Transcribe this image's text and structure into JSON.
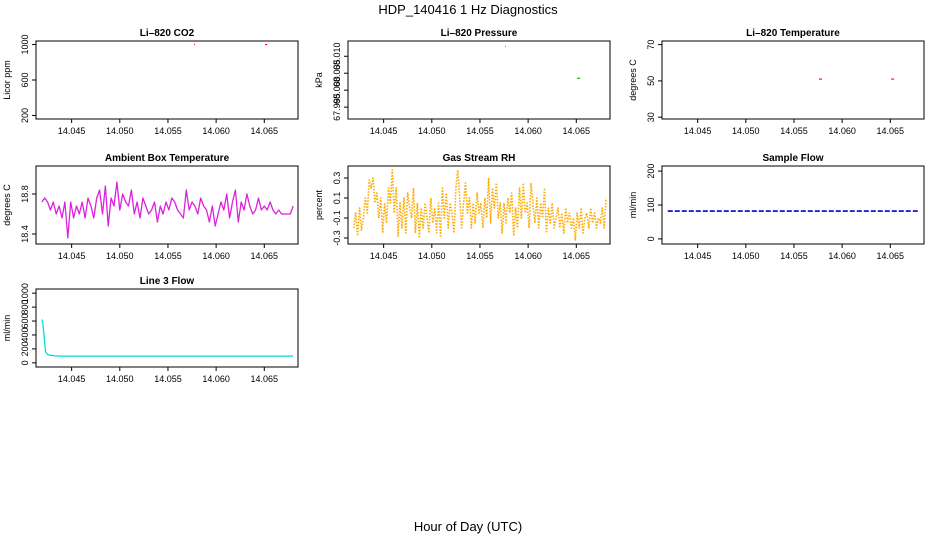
{
  "figure": {
    "title": "HDP_140416  1 Hz Diagnostics",
    "xlabel": "Hour of Day (UTC)"
  },
  "chart_data": [
    {
      "id": "co2",
      "type": "line",
      "title": "Li–820 CO2",
      "ylabel": "Licor ppm",
      "xlim": [
        14.0413,
        14.0685
      ],
      "ylim": [
        160,
        1040
      ],
      "xticks": [
        14.045,
        14.05,
        14.055,
        14.06,
        14.065
      ],
      "xtick_labels": [
        "14.045",
        "14.050",
        "14.055",
        "14.060",
        "14.065"
      ],
      "yticks": [
        200,
        600,
        1000
      ],
      "ytick_labels": [
        "200",
        "600",
        "1000"
      ],
      "series": [
        {
          "name": "co2-a",
          "color": "#ff0000",
          "style": "solid",
          "x": [
            14.0577,
            14.0578
          ],
          "y": [
            1000,
            1000
          ]
        },
        {
          "name": "co2-b",
          "color": "#ff0000",
          "style": "solid",
          "x": [
            14.0651,
            14.0653
          ],
          "y": [
            1000,
            1000
          ]
        }
      ]
    },
    {
      "id": "pressure",
      "type": "line",
      "title": "Li–820 Pressure",
      "ylabel": "kPa",
      "xlim": [
        14.0413,
        14.0685
      ],
      "ylim": [
        67.9915,
        68.0145
      ],
      "xticks": [
        14.045,
        14.05,
        14.055,
        14.06,
        14.065
      ],
      "xtick_labels": [
        "14.045",
        "14.050",
        "14.055",
        "14.060",
        "14.065"
      ],
      "yticks": [
        67.995,
        68.0,
        68.005,
        68.01
      ],
      "ytick_labels": [
        "67.995",
        "68.000",
        "68.005",
        "68.010"
      ],
      "series": [
        {
          "name": "pressure-a",
          "color": "#888888",
          "style": "solid",
          "x": [
            14.0576,
            14.0577
          ],
          "y": [
            68.013,
            68.013
          ]
        },
        {
          "name": "pressure-b",
          "color": "#00cc00",
          "style": "solid",
          "x": [
            14.0651,
            14.0654
          ],
          "y": [
            68.0035,
            68.0035
          ]
        }
      ]
    },
    {
      "id": "licor-temp",
      "type": "line",
      "title": "Li–820 Temperature",
      "ylabel": "degrees C",
      "xlim": [
        14.0413,
        14.0685
      ],
      "ylim": [
        29,
        72
      ],
      "xticks": [
        14.045,
        14.05,
        14.055,
        14.06,
        14.065
      ],
      "xtick_labels": [
        "14.045",
        "14.050",
        "14.055",
        "14.060",
        "14.065"
      ],
      "yticks": [
        30,
        50,
        70
      ],
      "ytick_labels": [
        "30",
        "50",
        "70"
      ],
      "series": [
        {
          "name": "temp-a",
          "color": "#ff00cc",
          "style": "solid",
          "x": [
            14.0576,
            14.0579
          ],
          "y": [
            51,
            51
          ]
        },
        {
          "name": "temp-b",
          "color": "#ff00cc",
          "style": "solid",
          "x": [
            14.0651,
            14.0654
          ],
          "y": [
            51,
            51
          ]
        }
      ]
    },
    {
      "id": "box-temp",
      "type": "line",
      "title": "Ambient Box Temperature",
      "ylabel": "degrees C",
      "xlim": [
        14.0413,
        14.0685
      ],
      "ylim": [
        18.3,
        19.08
      ],
      "xticks": [
        14.045,
        14.05,
        14.055,
        14.06,
        14.065
      ],
      "xtick_labels": [
        "14.045",
        "14.050",
        "14.055",
        "14.060",
        "14.065"
      ],
      "yticks": [
        18.4,
        18.8
      ],
      "ytick_labels": [
        "18.4",
        "18.8"
      ],
      "series": [
        {
          "name": "box-temp",
          "color": "#dd22dd",
          "style": "solid",
          "x": [
            14.0419,
            14.0422,
            14.0425,
            14.0428,
            14.0431,
            14.0434,
            14.0437,
            14.044,
            14.0443,
            14.0446,
            14.0449,
            14.0452,
            14.0455,
            14.0458,
            14.0461,
            14.0464,
            14.0467,
            14.047,
            14.0473,
            14.0476,
            14.0479,
            14.0482,
            14.0485,
            14.0488,
            14.0491,
            14.0494,
            14.0497,
            14.05,
            14.0503,
            14.0506,
            14.0509,
            14.0512,
            14.0515,
            14.0518,
            14.0521,
            14.0524,
            14.0527,
            14.053,
            14.0533,
            14.0536,
            14.0539,
            14.0542,
            14.0545,
            14.0548,
            14.0551,
            14.0554,
            14.0557,
            14.056,
            14.0563,
            14.0566,
            14.0569,
            14.0572,
            14.0575,
            14.0578,
            14.0581,
            14.0584,
            14.0587,
            14.059,
            14.0593,
            14.0596,
            14.0599,
            14.0602,
            14.0605,
            14.0608,
            14.0611,
            14.0614,
            14.0617,
            14.062,
            14.0623,
            14.0626,
            14.0629,
            14.0632,
            14.0635,
            14.0638,
            14.0641,
            14.0644,
            14.0647,
            14.065,
            14.0653,
            14.0656,
            14.0659,
            14.0662,
            14.0665,
            14.0668,
            14.0671,
            14.0674,
            14.0677,
            14.068
          ],
          "y": [
            18.72,
            18.76,
            18.72,
            18.64,
            18.72,
            18.6,
            18.68,
            18.56,
            18.72,
            18.36,
            18.72,
            18.56,
            18.68,
            18.6,
            18.72,
            18.56,
            18.76,
            18.68,
            18.56,
            18.76,
            18.84,
            18.6,
            18.88,
            18.48,
            18.76,
            18.68,
            18.92,
            18.64,
            18.8,
            18.72,
            18.68,
            18.84,
            18.6,
            18.72,
            18.56,
            18.76,
            18.68,
            18.6,
            18.64,
            18.72,
            18.52,
            18.68,
            18.6,
            18.72,
            18.64,
            18.76,
            18.72,
            18.64,
            18.6,
            18.56,
            18.84,
            18.64,
            18.72,
            18.68,
            18.6,
            18.76,
            18.68,
            18.64,
            18.52,
            18.68,
            18.48,
            18.6,
            18.72,
            18.64,
            18.8,
            18.56,
            18.72,
            18.84,
            18.52,
            18.72,
            18.64,
            18.8,
            18.68,
            18.6,
            18.64,
            18.76,
            18.64,
            18.68,
            18.64,
            18.72,
            18.64,
            18.6,
            18.64,
            18.6,
            18.6,
            18.6,
            18.6,
            18.68
          ]
        }
      ]
    },
    {
      "id": "rh",
      "type": "line",
      "title": "Gas Stream RH",
      "ylabel": "percent",
      "xlim": [
        14.0413,
        14.0685
      ],
      "ylim": [
        -0.36,
        0.42
      ],
      "xticks": [
        14.045,
        14.05,
        14.055,
        14.06,
        14.065
      ],
      "xtick_labels": [
        "14.045",
        "14.050",
        "14.055",
        "14.060",
        "14.065"
      ],
      "yticks": [
        -0.3,
        -0.1,
        0.1,
        0.3
      ],
      "ytick_labels": [
        "-0.3",
        "-0.1",
        "0.1",
        "0.3"
      ],
      "series": [
        {
          "name": "rh",
          "color": "#ffaa00",
          "style": "dotted",
          "x": [
            14.0419,
            14.0421,
            14.0423,
            14.0425,
            14.0427,
            14.0429,
            14.0431,
            14.0433,
            14.0435,
            14.0437,
            14.0439,
            14.0441,
            14.0443,
            14.0445,
            14.0447,
            14.0449,
            14.0451,
            14.0453,
            14.0455,
            14.0457,
            14.0459,
            14.0461,
            14.0463,
            14.0465,
            14.0467,
            14.0469,
            14.0471,
            14.0473,
            14.0475,
            14.0477,
            14.0479,
            14.0481,
            14.0483,
            14.0485,
            14.0487,
            14.0489,
            14.0491,
            14.0493,
            14.0495,
            14.0497,
            14.0499,
            14.0501,
            14.0503,
            14.0505,
            14.0507,
            14.0509,
            14.0511,
            14.0513,
            14.0515,
            14.0517,
            14.0519,
            14.0521,
            14.0523,
            14.0525,
            14.0527,
            14.0529,
            14.0531,
            14.0533,
            14.0535,
            14.0537,
            14.0539,
            14.0541,
            14.0543,
            14.0545,
            14.0547,
            14.0549,
            14.0551,
            14.0553,
            14.0555,
            14.0557,
            14.0559,
            14.0561,
            14.0563,
            14.0565,
            14.0567,
            14.0569,
            14.0571,
            14.0573,
            14.0575,
            14.0577,
            14.0579,
            14.0581,
            14.0583,
            14.0585,
            14.0587,
            14.0589,
            14.0591,
            14.0593,
            14.0595,
            14.0597,
            14.0599,
            14.0601,
            14.0603,
            14.0605,
            14.0607,
            14.0609,
            14.0611,
            14.0613,
            14.0615,
            14.0617,
            14.0619,
            14.0621,
            14.0623,
            14.0625,
            14.0627,
            14.0629,
            14.0631,
            14.0633,
            14.0635,
            14.0637,
            14.0639,
            14.0641,
            14.0643,
            14.0645,
            14.0647,
            14.0649,
            14.0651,
            14.0653,
            14.0655,
            14.0657,
            14.0659,
            14.0661,
            14.0663,
            14.0665,
            14.0667,
            14.0669,
            14.0671,
            14.0673,
            14.0675,
            14.0677,
            14.0679,
            14.0681
          ],
          "y": [
            -0.2,
            -0.05,
            -0.28,
            0.0,
            -0.22,
            -0.1,
            0.1,
            -0.05,
            0.28,
            0.2,
            0.3,
            0.05,
            0.15,
            -0.1,
            0.1,
            -0.25,
            0.05,
            -0.15,
            0.2,
            0.05,
            0.38,
            -0.05,
            0.2,
            -0.28,
            0.05,
            -0.2,
            0.1,
            -0.25,
            0.15,
            0.0,
            -0.1,
            0.2,
            -0.25,
            0.05,
            -0.3,
            0.0,
            -0.2,
            0.05,
            -0.1,
            -0.25,
            0.1,
            -0.15,
            0.0,
            -0.25,
            0.05,
            -0.28,
            0.2,
            -0.1,
            0.15,
            -0.2,
            0.05,
            -0.05,
            -0.25,
            0.2,
            0.38,
            0.1,
            -0.2,
            0.05,
            0.25,
            -0.05,
            0.1,
            -0.2,
            0.05,
            -0.15,
            0.15,
            -0.05,
            0.05,
            -0.2,
            0.1,
            -0.1,
            0.3,
            -0.15,
            0.2,
            0.0,
            0.25,
            -0.1,
            0.05,
            -0.25,
            0.05,
            -0.15,
            0.1,
            -0.05,
            0.15,
            -0.28,
            0.0,
            -0.2,
            0.2,
            -0.1,
            0.25,
            -0.05,
            0.05,
            -0.2,
            0.25,
            0.05,
            -0.15,
            0.1,
            -0.2,
            0.05,
            -0.1,
            0.2,
            -0.25,
            0.0,
            -0.15,
            0.05,
            -0.2,
            -0.1,
            0.0,
            -0.2,
            -0.05,
            -0.25,
            0.0,
            -0.15,
            -0.05,
            -0.2,
            -0.1,
            -0.32,
            -0.05,
            -0.2,
            0.0,
            -0.25,
            -0.1,
            -0.05,
            -0.2,
            0.0,
            -0.15,
            -0.05,
            -0.2,
            -0.1,
            -0.15,
            0.0,
            -0.2,
            0.1
          ]
        }
      ]
    },
    {
      "id": "sample-flow",
      "type": "line",
      "title": "Sample Flow",
      "ylabel": "ml/min",
      "xlim": [
        14.0413,
        14.0685
      ],
      "ylim": [
        -15,
        215
      ],
      "xticks": [
        14.045,
        14.05,
        14.055,
        14.06,
        14.065
      ],
      "xtick_labels": [
        "14.045",
        "14.050",
        "14.055",
        "14.060",
        "14.065"
      ],
      "yticks": [
        0,
        100,
        200
      ],
      "ytick_labels": [
        "0",
        "100",
        "200"
      ],
      "series": [
        {
          "name": "sample-flow",
          "color": "#0000cc",
          "style": "dashed",
          "x": [
            14.0419,
            14.068
          ],
          "y": [
            82,
            82
          ]
        }
      ]
    },
    {
      "id": "line3-flow",
      "type": "line",
      "title": "Line 3 Flow",
      "ylabel": "ml/min",
      "xlim": [
        14.0413,
        14.0685
      ],
      "ylim": [
        -60,
        1060
      ],
      "xticks": [
        14.045,
        14.05,
        14.055,
        14.06,
        14.065
      ],
      "xtick_labels": [
        "14.045",
        "14.050",
        "14.055",
        "14.060",
        "14.065"
      ],
      "yticks": [
        0,
        200,
        400,
        600,
        800,
        1000
      ],
      "ytick_labels": [
        "0",
        "200",
        "400",
        "600",
        "800",
        "1000"
      ],
      "series": [
        {
          "name": "line3-flow",
          "color": "#00dddd",
          "style": "solid",
          "x": [
            14.0419,
            14.042,
            14.0421,
            14.0422,
            14.0423,
            14.0425,
            14.0427,
            14.043,
            14.0433,
            14.0436,
            14.044,
            14.045,
            14.046,
            14.047,
            14.048,
            14.049,
            14.05,
            14.051,
            14.052,
            14.053,
            14.054,
            14.055,
            14.056,
            14.057,
            14.058,
            14.059,
            14.06,
            14.061,
            14.062,
            14.063,
            14.064,
            14.065,
            14.066,
            14.067,
            14.068
          ],
          "y": [
            620,
            580,
            440,
            280,
            160,
            120,
            110,
            105,
            100,
            98,
            97,
            96,
            96,
            96,
            96,
            96,
            96,
            96,
            96,
            96,
            96,
            96,
            96,
            96,
            96,
            96,
            96,
            96,
            96,
            96,
            96,
            96,
            96,
            96,
            96
          ]
        }
      ]
    }
  ]
}
